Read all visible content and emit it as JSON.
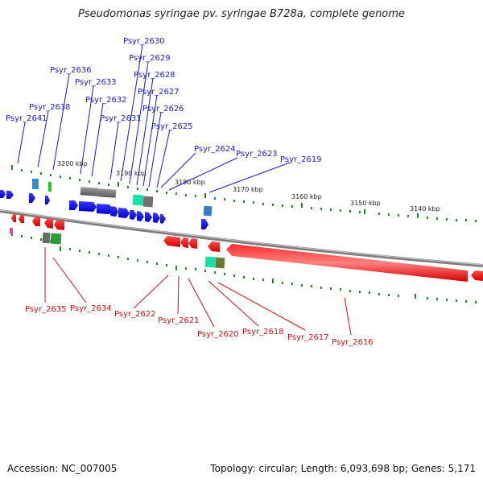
{
  "title": "Pseudomonas syringae pv. syringae B728a, complete genome",
  "footer": {
    "accession": "Accession: NC_007005",
    "summary": "Topology: circular; Length: 6,093,698 bp; Genes: 5,171"
  },
  "kbp_labels": [
    "3200 kbp",
    "3190 kbp",
    "3180 kbp",
    "3170 kbp",
    "3160 kbp",
    "3150 kbp",
    "3140 kbp"
  ],
  "forward_genes": [
    "Psyr_2641",
    "Psyr_2638",
    "Psyr_2636",
    "Psyr_2633",
    "Psyr_2632",
    "Psyr_2631",
    "Psyr_2630",
    "Psyr_2629",
    "Psyr_2628",
    "Psyr_2627",
    "Psyr_2626",
    "Psyr_2625",
    "Psyr_2624",
    "Psyr_2623",
    "Psyr_2619"
  ],
  "reverse_genes": [
    "Psyr_2635",
    "Psyr_2634",
    "Psyr_2622",
    "Psyr_2621",
    "Psyr_2620",
    "Psyr_2618",
    "Psyr_2617",
    "Psyr_2616"
  ],
  "colors": {
    "forward": "#0a0aee",
    "reverse": "#ee1111",
    "backbone": "#808080",
    "tick": "#1f8a1f",
    "forward_label": "#1a1acc",
    "reverse_label": "#cc1111"
  }
}
